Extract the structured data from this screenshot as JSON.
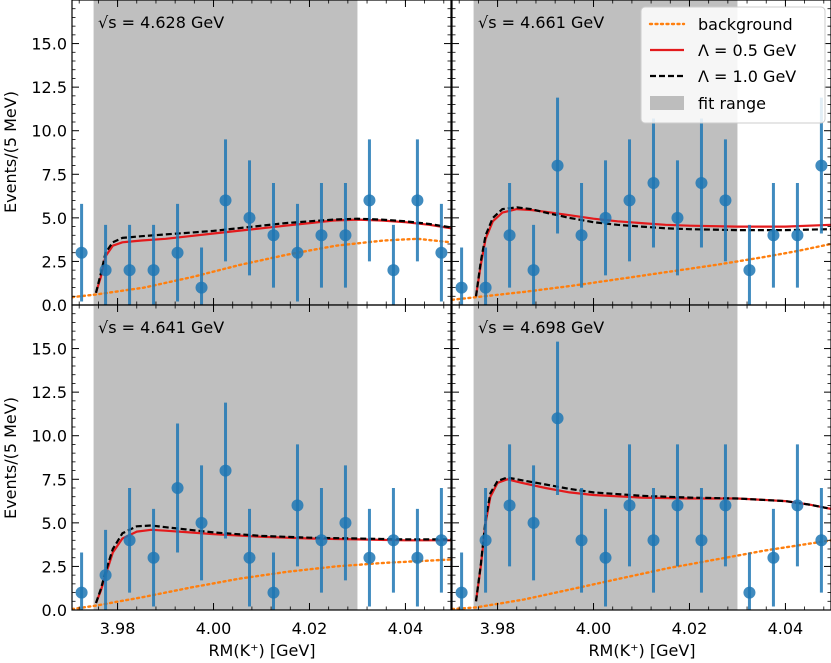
{
  "chart_data": {
    "type": "scatter",
    "xlabel": "RM(K⁺) [GeV]",
    "ylabel": "Events/(5 MeV)",
    "xlim": [
      3.9705,
      4.0495
    ],
    "ylim": [
      0,
      17.5
    ],
    "x_ticks": [
      "3.98",
      "4.00",
      "4.02",
      "4.04"
    ],
    "x_tick_values": [
      3.98,
      4.0,
      4.02,
      4.04
    ],
    "y_ticks": [
      "0.0",
      "2.5",
      "5.0",
      "7.5",
      "10.0",
      "12.5",
      "15.0"
    ],
    "y_tick_values": [
      0,
      2.5,
      5.0,
      7.5,
      10.0,
      12.5,
      15.0
    ],
    "fit_range": [
      3.975,
      4.03
    ],
    "legend": {
      "placement": "top-right",
      "entries": [
        {
          "label": "background",
          "style": "dotted",
          "color": "#ff7f0e"
        },
        {
          "label": "Λ =  0.5 GeV",
          "style": "solid",
          "color": "#e31a1c"
        },
        {
          "label": "Λ =  1.0 GeV",
          "style": "dashed",
          "color": "#000000"
        },
        {
          "label": "fit range",
          "style": "patch",
          "color": "#a9a9a9"
        }
      ]
    },
    "colors": {
      "data": "#1f77b4",
      "background": "#ff7f0e",
      "lambda05": "#e31a1c",
      "lambda10": "#000000",
      "fit_range": "#a9a9a9"
    },
    "panels": [
      {
        "energy_label": "√s = 4.628 GeV",
        "points_x": [
          3.9725,
          3.9775,
          3.9825,
          3.9875,
          3.9925,
          3.9975,
          4.0025,
          4.0075,
          4.0125,
          4.0175,
          4.0225,
          4.0275,
          4.0325,
          4.0375,
          4.0425,
          4.0475
        ],
        "points_y": [
          3,
          2,
          2,
          2,
          3,
          1,
          6,
          5,
          4,
          3,
          4,
          4,
          6,
          2,
          6,
          3
        ],
        "errors": [
          2.8,
          2.6,
          2.6,
          2.6,
          2.8,
          2.3,
          3.5,
          3.3,
          3.0,
          2.8,
          3.0,
          3.0,
          3.5,
          2.6,
          3.5,
          2.8
        ],
        "background": {
          "x": [
            3.9705,
            3.9755,
            3.9855,
            3.9955,
            4.0055,
            4.0155,
            4.0255,
            4.0355,
            4.0425,
            4.0495
          ],
          "y": [
            0.45,
            0.6,
            1.0,
            1.6,
            2.3,
            2.9,
            3.4,
            3.7,
            3.8,
            3.6
          ]
        },
        "lambda05": {
          "x": [
            3.9755,
            3.9765,
            3.9775,
            3.979,
            3.981,
            3.985,
            3.99,
            3.995,
            4.0,
            4.005,
            4.01,
            4.015,
            4.02,
            4.025,
            4.03,
            4.035,
            4.04,
            4.045,
            4.0495
          ],
          "y": [
            0.7,
            1.6,
            2.8,
            3.4,
            3.6,
            3.7,
            3.8,
            3.95,
            4.1,
            4.25,
            4.4,
            4.55,
            4.7,
            4.85,
            4.9,
            4.85,
            4.75,
            4.6,
            4.4
          ]
        },
        "lambda10": {
          "x": [
            3.9755,
            3.9765,
            3.9775,
            3.979,
            3.981,
            3.985,
            3.99,
            3.995,
            4.0,
            4.005,
            4.01,
            4.015,
            4.02,
            4.025,
            4.03,
            4.035,
            4.04,
            4.045,
            4.0495
          ],
          "y": [
            0.7,
            1.8,
            3.0,
            3.6,
            3.85,
            3.95,
            4.05,
            4.15,
            4.25,
            4.4,
            4.55,
            4.7,
            4.8,
            4.9,
            4.95,
            4.9,
            4.8,
            4.65,
            4.45
          ]
        }
      },
      {
        "energy_label": "√s = 4.661 GeV",
        "points_x": [
          3.9725,
          3.9775,
          3.9825,
          3.9875,
          3.9925,
          3.9975,
          4.0025,
          4.0075,
          4.0125,
          4.0175,
          4.0225,
          4.0275,
          4.0325,
          4.0375,
          4.0425,
          4.0475
        ],
        "points_y": [
          1,
          1,
          4,
          2,
          8,
          4,
          5,
          6,
          7,
          5,
          7,
          6,
          2,
          4,
          4,
          8
        ],
        "errors": [
          2.3,
          2.3,
          3.0,
          2.6,
          3.9,
          3.0,
          3.3,
          3.5,
          3.7,
          3.3,
          3.7,
          3.5,
          2.6,
          3.0,
          3.0,
          3.9
        ],
        "background": {
          "x": [
            3.9705,
            3.9755,
            3.9855,
            3.9955,
            4.0055,
            4.0155,
            4.0255,
            4.0355,
            4.0425,
            4.0495
          ],
          "y": [
            0.3,
            0.45,
            0.75,
            1.1,
            1.5,
            1.9,
            2.3,
            2.75,
            3.1,
            3.5
          ]
        },
        "lambda05": {
          "x": [
            3.9755,
            3.9765,
            3.9775,
            3.979,
            3.981,
            3.984,
            3.987,
            3.99,
            3.995,
            4.0,
            4.005,
            4.01,
            4.015,
            4.02,
            4.03,
            4.04,
            4.0495
          ],
          "y": [
            0.5,
            2.3,
            3.8,
            4.8,
            5.3,
            5.5,
            5.45,
            5.35,
            5.15,
            4.95,
            4.8,
            4.7,
            4.6,
            4.55,
            4.5,
            4.5,
            4.6
          ]
        },
        "lambda10": {
          "x": [
            3.9755,
            3.9765,
            3.9775,
            3.979,
            3.981,
            3.984,
            3.987,
            3.99,
            3.995,
            4.0,
            4.005,
            4.01,
            4.015,
            4.02,
            4.03,
            4.04,
            4.0495
          ],
          "y": [
            0.5,
            2.5,
            4.0,
            5.0,
            5.5,
            5.6,
            5.5,
            5.3,
            5.0,
            4.75,
            4.6,
            4.5,
            4.4,
            4.35,
            4.3,
            4.3,
            4.35
          ]
        }
      },
      {
        "energy_label": "√s = 4.641 GeV",
        "points_x": [
          3.9725,
          3.9775,
          3.9825,
          3.9875,
          3.9925,
          3.9975,
          4.0025,
          4.0075,
          4.0125,
          4.0175,
          4.0225,
          4.0275,
          4.0325,
          4.0375,
          4.0425,
          4.0475
        ],
        "points_y": [
          1,
          2,
          4,
          3,
          7,
          5,
          8,
          3,
          1,
          6,
          4,
          5,
          3,
          4,
          3,
          4
        ],
        "errors": [
          2.3,
          2.6,
          3.0,
          2.8,
          3.7,
          3.3,
          3.9,
          2.8,
          2.3,
          3.5,
          3.0,
          3.3,
          2.8,
          3.0,
          2.8,
          3.0
        ],
        "background": {
          "x": [
            3.9705,
            3.9755,
            3.9855,
            3.9955,
            4.0055,
            4.0155,
            4.0255,
            4.0355,
            4.0425,
            4.0495
          ],
          "y": [
            0.05,
            0.25,
            0.75,
            1.3,
            1.8,
            2.2,
            2.5,
            2.7,
            2.8,
            2.9
          ]
        },
        "lambda05": {
          "x": [
            3.9755,
            3.9765,
            3.9775,
            3.979,
            3.981,
            3.984,
            3.987,
            3.99,
            3.995,
            4.0,
            4.01,
            4.02,
            4.03,
            4.04,
            4.0495
          ],
          "y": [
            0.4,
            1.1,
            2.0,
            3.3,
            4.1,
            4.5,
            4.6,
            4.55,
            4.45,
            4.35,
            4.2,
            4.1,
            4.05,
            4.0,
            4.0
          ]
        },
        "lambda10": {
          "x": [
            3.9755,
            3.9765,
            3.9775,
            3.979,
            3.981,
            3.984,
            3.987,
            3.99,
            3.995,
            4.0,
            4.01,
            4.02,
            4.03,
            4.04,
            4.0495
          ],
          "y": [
            0.4,
            1.2,
            2.2,
            3.5,
            4.4,
            4.8,
            4.85,
            4.75,
            4.6,
            4.45,
            4.25,
            4.15,
            4.1,
            4.05,
            4.05
          ]
        }
      },
      {
        "energy_label": "√s = 4.698 GeV",
        "points_x": [
          3.9725,
          3.9775,
          3.9825,
          3.9875,
          3.9925,
          3.9975,
          4.0025,
          4.0075,
          4.0125,
          4.0175,
          4.0225,
          4.0275,
          4.0325,
          4.0375,
          4.0425,
          4.0475
        ],
        "points_y": [
          1,
          4,
          6,
          5,
          11,
          4,
          3,
          6,
          4,
          6,
          4,
          6,
          1,
          3,
          6,
          4
        ],
        "errors": [
          2.3,
          3.0,
          3.5,
          3.3,
          4.4,
          3.0,
          2.8,
          3.5,
          3.0,
          3.5,
          3.0,
          3.5,
          2.3,
          2.8,
          3.5,
          3.0
        ],
        "background": {
          "x": [
            3.9705,
            3.9755,
            3.9855,
            3.9955,
            4.0055,
            4.0155,
            4.0255,
            4.0355,
            4.0425,
            4.0495
          ],
          "y": [
            0.05,
            0.15,
            0.6,
            1.2,
            1.8,
            2.4,
            2.9,
            3.4,
            3.7,
            4.0
          ]
        },
        "lambda05": {
          "x": [
            3.9755,
            3.9765,
            3.9775,
            3.9785,
            3.98,
            3.982,
            3.985,
            3.99,
            3.995,
            4.0,
            4.01,
            4.02,
            4.03,
            4.04,
            4.045,
            4.0495
          ],
          "y": [
            0.5,
            2.5,
            5.0,
            6.5,
            7.3,
            7.5,
            7.3,
            7.0,
            6.75,
            6.6,
            6.45,
            6.4,
            6.4,
            6.25,
            6.05,
            5.8
          ]
        },
        "lambda10": {
          "x": [
            3.9755,
            3.9765,
            3.9775,
            3.9785,
            3.98,
            3.982,
            3.985,
            3.99,
            3.995,
            4.0,
            4.01,
            4.02,
            4.03,
            4.04,
            4.045,
            4.0495
          ],
          "y": [
            0.5,
            2.6,
            5.2,
            6.7,
            7.4,
            7.6,
            7.45,
            7.2,
            6.95,
            6.75,
            6.55,
            6.45,
            6.4,
            6.25,
            6.05,
            5.8
          ]
        }
      }
    ]
  }
}
